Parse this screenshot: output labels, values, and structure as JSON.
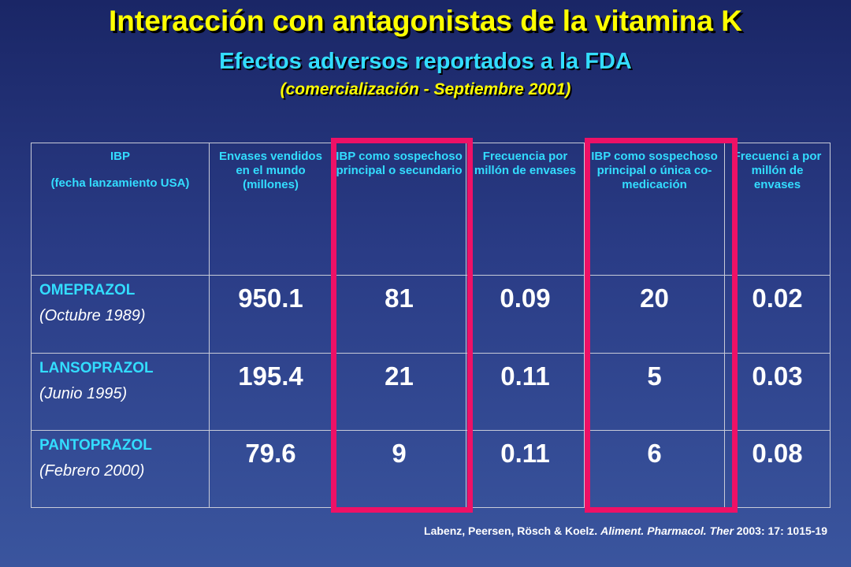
{
  "slide": {
    "title": "Interacción con antagonistas de la vitamina K",
    "subtitle": "Efectos adversos reportados a la FDA",
    "period": "(comercialización - Septiembre 2001)"
  },
  "table": {
    "headers": [
      [
        "IBP",
        "(fecha lanzamiento USA)"
      ],
      [
        "Envases vendidos en el mundo (millones)"
      ],
      [
        "IBP como sospechoso principal o secundario"
      ],
      [
        "Frecuencia por millón de envases"
      ],
      [
        "IBP como sospechoso principal o única co-medicación"
      ],
      [
        "Frecuenci a por millón de envases"
      ]
    ],
    "rows": [
      {
        "drug": "OMEPRAZOL",
        "date": "(Octubre 1989)",
        "values": [
          "950.1",
          "81",
          "0.09",
          "20",
          "0.02"
        ]
      },
      {
        "drug": "LANSOPRAZOL",
        "date": "(Junio 1995)",
        "values": [
          "195.4",
          "21",
          "0.11",
          "5",
          "0.03"
        ]
      },
      {
        "drug": "PANTOPRAZOL",
        "date": "(Febrero 2000)",
        "values": [
          "79.6",
          "9",
          "0.11",
          "6",
          "0.08"
        ]
      }
    ],
    "highlight_color": "#ee1166"
  },
  "citation": {
    "authors": "Labenz, Peersen, Rösch & Koelz.",
    "journal": "Aliment. Pharmacol. Ther",
    "details": "2003: 17: 1015-19"
  }
}
